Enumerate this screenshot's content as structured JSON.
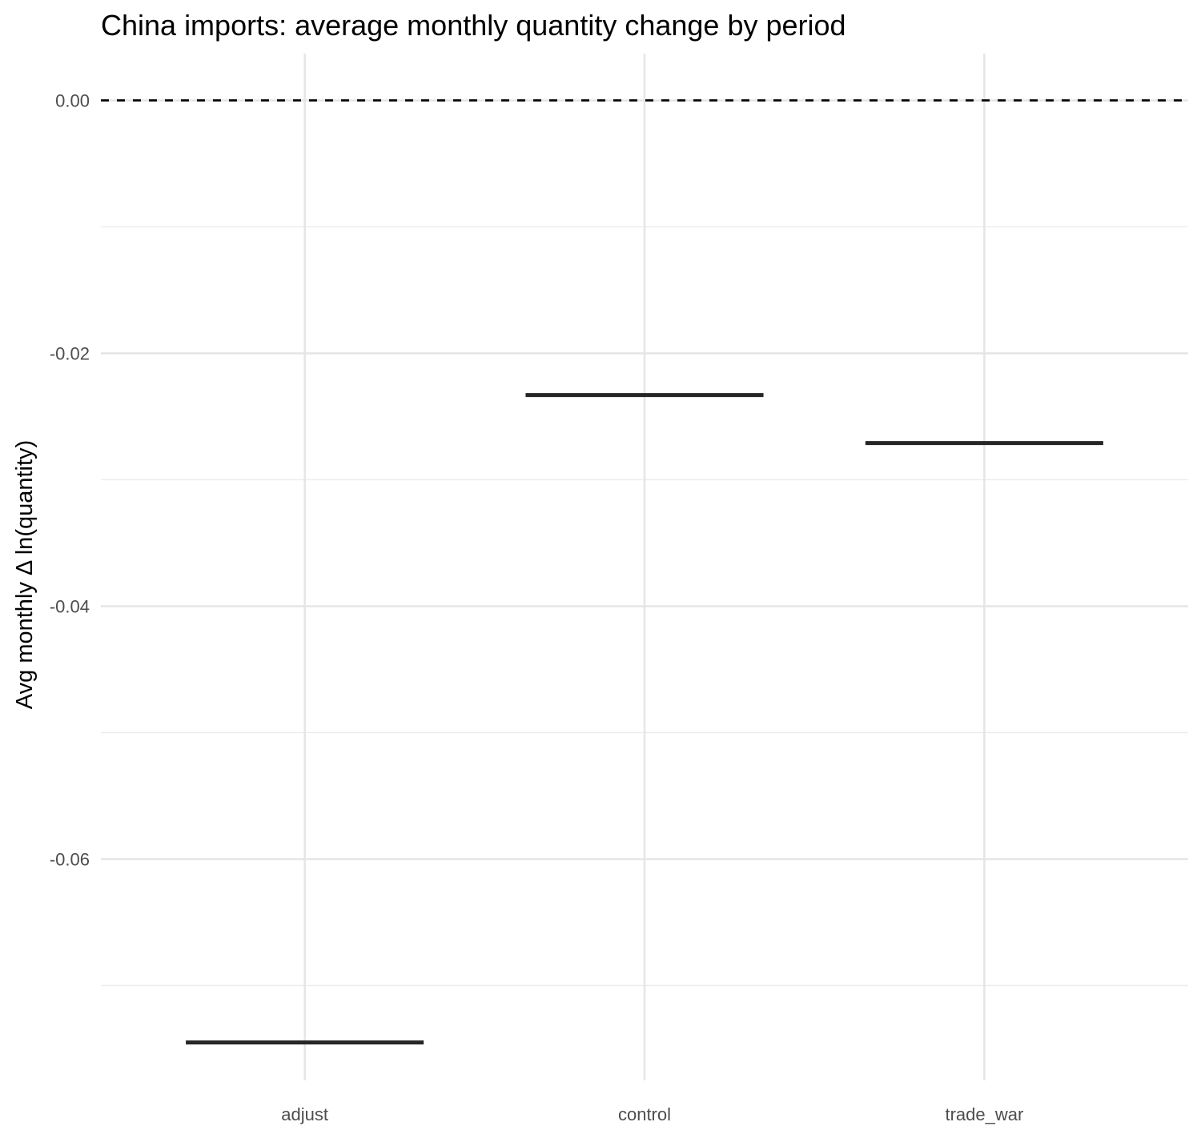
{
  "chart_data": {
    "type": "crossbar",
    "title": "China imports: average monthly quantity change by period",
    "xlabel": "",
    "ylabel": "Avg monthly Δ ln(quantity)",
    "categories": [
      "adjust",
      "control",
      "trade_war"
    ],
    "values": [
      -0.0745,
      -0.0233,
      -0.0271
    ],
    "ylim": [
      -0.0775,
      0.0037
    ],
    "y_ticks": [
      0.0,
      -0.02,
      -0.04,
      -0.06
    ],
    "y_tick_labels": [
      "0.00",
      "-0.02",
      "-0.04",
      "-0.06"
    ],
    "y_minor_ticks": [
      -0.01,
      -0.03,
      -0.05,
      -0.07
    ],
    "reference_line": {
      "y": 0.0,
      "style": "dashed",
      "color": "#000000"
    },
    "grid": true,
    "legend": "none",
    "colors": {
      "mark": "#262626",
      "grid": "#e5e5e5",
      "tick_text": "#4d4d4d"
    }
  }
}
